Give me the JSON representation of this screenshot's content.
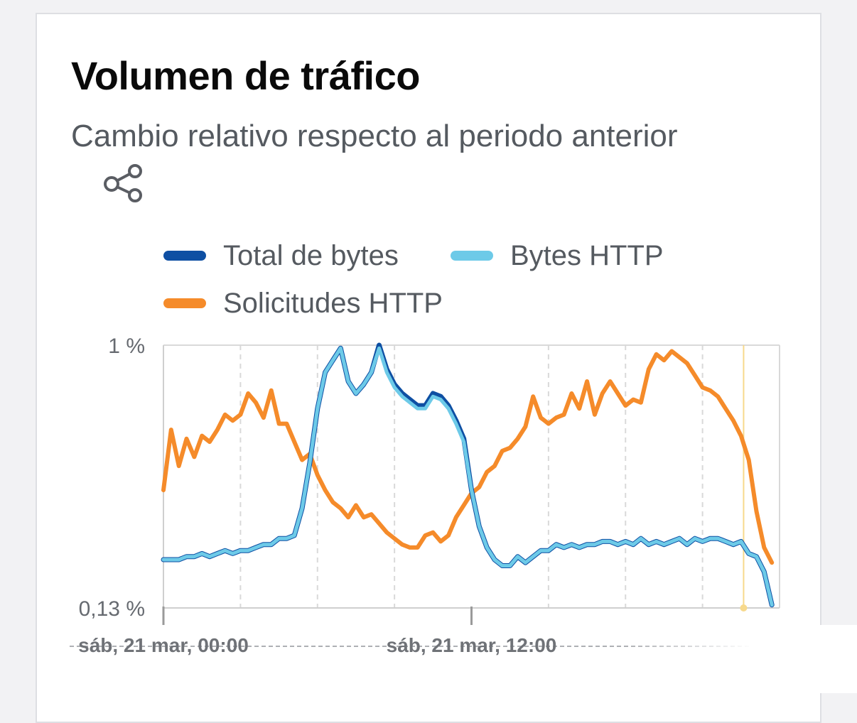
{
  "card": {
    "title": "Volumen de tráfico",
    "subtitle": "Cambio relativo respecto al periodo anterior",
    "share_icon": "share-icon"
  },
  "legend": [
    {
      "label": "Total de bytes",
      "color": "#0e4fa3"
    },
    {
      "label": "Bytes HTTP",
      "color": "#6dcae8"
    },
    {
      "label": "Solicitudes HTTP",
      "color": "#f58b2a"
    }
  ],
  "chart_data": {
    "type": "line",
    "title": "Volumen de tráfico",
    "subtitle": "Cambio relativo respecto al periodo anterior",
    "xlabel": "",
    "ylabel": "",
    "y_tick_labels": [
      "1 %",
      "0,13 %"
    ],
    "ylim": [
      0.13,
      1.0
    ],
    "x_tick_labels": [
      "sáb, 21 mar, 00:00",
      "sáb, 21 mar, 12:00"
    ],
    "x": [
      0,
      0.3,
      0.6,
      0.9,
      1.2,
      1.5,
      1.8,
      2.1,
      2.4,
      2.7,
      3.0,
      3.3,
      3.6,
      3.9,
      4.2,
      4.5,
      4.8,
      5.1,
      5.4,
      5.7,
      6.0,
      6.3,
      6.6,
      6.9,
      7.2,
      7.5,
      7.8,
      8.1,
      8.4,
      8.7,
      9.0,
      9.3,
      9.6,
      9.9,
      10.2,
      10.5,
      10.8,
      11.1,
      11.4,
      11.7,
      12.0,
      12.3,
      12.6,
      12.9,
      13.2,
      13.5,
      13.8,
      14.1,
      14.4,
      14.7,
      15.0,
      15.3,
      15.6,
      15.9,
      16.2,
      16.5,
      16.8,
      17.1,
      17.4,
      17.7,
      18.0,
      18.3,
      18.6,
      18.9,
      19.2,
      19.5,
      19.8,
      20.1,
      20.4,
      20.7,
      21.0,
      21.3,
      21.6,
      21.9,
      22.2,
      22.5,
      22.8,
      23.1,
      23.4,
      23.7
    ],
    "grid": true,
    "legend_position": "top",
    "series": [
      {
        "name": "Total de bytes",
        "color": "#0e4fa3",
        "values": [
          0.29,
          0.29,
          0.29,
          0.3,
          0.3,
          0.31,
          0.3,
          0.31,
          0.32,
          0.31,
          0.32,
          0.32,
          0.33,
          0.34,
          0.34,
          0.36,
          0.36,
          0.37,
          0.46,
          0.61,
          0.79,
          0.91,
          0.95,
          0.99,
          0.88,
          0.84,
          0.87,
          0.91,
          1.0,
          0.92,
          0.87,
          0.84,
          0.82,
          0.8,
          0.8,
          0.84,
          0.83,
          0.8,
          0.75,
          0.69,
          0.52,
          0.4,
          0.33,
          0.29,
          0.27,
          0.27,
          0.3,
          0.28,
          0.3,
          0.32,
          0.32,
          0.34,
          0.33,
          0.34,
          0.33,
          0.34,
          0.34,
          0.35,
          0.35,
          0.34,
          0.35,
          0.34,
          0.36,
          0.34,
          0.35,
          0.34,
          0.35,
          0.36,
          0.34,
          0.36,
          0.35,
          0.36,
          0.36,
          0.35,
          0.34,
          0.35,
          0.31,
          0.3,
          0.25,
          0.14
        ]
      },
      {
        "name": "Bytes HTTP",
        "color": "#6dcae8",
        "values": [
          0.29,
          0.29,
          0.29,
          0.3,
          0.3,
          0.31,
          0.3,
          0.31,
          0.32,
          0.31,
          0.32,
          0.32,
          0.33,
          0.34,
          0.34,
          0.36,
          0.36,
          0.37,
          0.46,
          0.61,
          0.79,
          0.91,
          0.95,
          0.99,
          0.88,
          0.84,
          0.87,
          0.91,
          0.99,
          0.91,
          0.86,
          0.83,
          0.81,
          0.79,
          0.79,
          0.83,
          0.82,
          0.79,
          0.74,
          0.68,
          0.52,
          0.4,
          0.33,
          0.29,
          0.27,
          0.27,
          0.3,
          0.28,
          0.3,
          0.32,
          0.32,
          0.34,
          0.33,
          0.34,
          0.33,
          0.34,
          0.34,
          0.35,
          0.35,
          0.34,
          0.35,
          0.34,
          0.36,
          0.34,
          0.35,
          0.34,
          0.35,
          0.36,
          0.34,
          0.36,
          0.35,
          0.36,
          0.36,
          0.35,
          0.34,
          0.35,
          0.31,
          0.3,
          0.25,
          0.14
        ]
      },
      {
        "name": "Solicitudes HTTP",
        "color": "#f58b2a",
        "values": [
          0.52,
          0.72,
          0.6,
          0.69,
          0.63,
          0.7,
          0.68,
          0.72,
          0.77,
          0.75,
          0.77,
          0.84,
          0.81,
          0.76,
          0.85,
          0.74,
          0.74,
          0.68,
          0.62,
          0.64,
          0.57,
          0.52,
          0.48,
          0.46,
          0.43,
          0.47,
          0.43,
          0.44,
          0.41,
          0.38,
          0.36,
          0.34,
          0.33,
          0.33,
          0.37,
          0.38,
          0.35,
          0.37,
          0.43,
          0.47,
          0.51,
          0.53,
          0.58,
          0.6,
          0.65,
          0.66,
          0.69,
          0.73,
          0.83,
          0.76,
          0.74,
          0.76,
          0.77,
          0.84,
          0.79,
          0.88,
          0.77,
          0.84,
          0.88,
          0.84,
          0.8,
          0.82,
          0.81,
          0.92,
          0.97,
          0.95,
          0.98,
          0.96,
          0.94,
          0.9,
          0.86,
          0.85,
          0.83,
          0.79,
          0.75,
          0.7,
          0.62,
          0.45,
          0.33,
          0.28
        ]
      }
    ],
    "cursor": {
      "x": 22.6,
      "color": "#f7d98c"
    }
  }
}
